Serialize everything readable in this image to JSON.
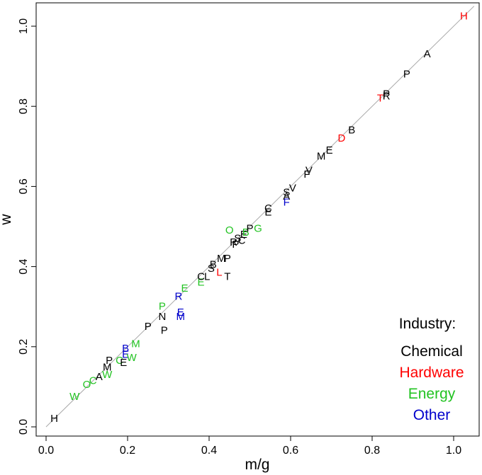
{
  "chart_data": {
    "type": "scatter",
    "title": "",
    "xlabel": "m/g",
    "ylabel": "w",
    "xlim": [
      -0.02,
      1.05
    ],
    "ylim": [
      -0.02,
      1.05
    ],
    "x_ticks": [
      "0.0",
      "0.2",
      "0.4",
      "0.6",
      "0.8",
      "1.0"
    ],
    "y_ticks": [
      "0.0",
      "0.2",
      "0.4",
      "0.6",
      "0.8",
      "1.0"
    ],
    "grid": false,
    "reference_line": {
      "from": [
        0.0,
        0.0
      ],
      "to": [
        1.05,
        1.05
      ],
      "color": "#a9a9a9"
    },
    "legend": {
      "title": "Industry:",
      "position": "bottom-right",
      "entries": [
        {
          "name": "Chemical",
          "color": "#000000"
        },
        {
          "name": "Hardware",
          "color": "#ff0000"
        },
        {
          "name": "Energy",
          "color": "#22c322"
        },
        {
          "name": "Other",
          "color": "#0000cc"
        }
      ]
    },
    "points": [
      {
        "label": "H",
        "industry": "Chemical",
        "x": 0.02,
        "y": 0.02
      },
      {
        "label": "W",
        "industry": "Energy",
        "x": 0.07,
        "y": 0.075
      },
      {
        "label": "O",
        "industry": "Energy",
        "x": 0.1,
        "y": 0.105
      },
      {
        "label": "C",
        "industry": "Energy",
        "x": 0.115,
        "y": 0.115
      },
      {
        "label": "A",
        "industry": "Chemical",
        "x": 0.13,
        "y": 0.125
      },
      {
        "label": "W",
        "industry": "Energy",
        "x": 0.15,
        "y": 0.13
      },
      {
        "label": "M",
        "industry": "Chemical",
        "x": 0.15,
        "y": 0.148
      },
      {
        "label": "P",
        "industry": "Chemical",
        "x": 0.155,
        "y": 0.165
      },
      {
        "label": "C",
        "industry": "Energy",
        "x": 0.18,
        "y": 0.165
      },
      {
        "label": "E",
        "industry": "Chemical",
        "x": 0.19,
        "y": 0.16
      },
      {
        "label": "E",
        "industry": "Other",
        "x": 0.195,
        "y": 0.18
      },
      {
        "label": "W",
        "industry": "Energy",
        "x": 0.21,
        "y": 0.172
      },
      {
        "label": "B",
        "industry": "Other",
        "x": 0.195,
        "y": 0.195
      },
      {
        "label": "M",
        "industry": "Energy",
        "x": 0.22,
        "y": 0.207
      },
      {
        "label": "P",
        "industry": "Chemical",
        "x": 0.25,
        "y": 0.25
      },
      {
        "label": "P",
        "industry": "Chemical",
        "x": 0.29,
        "y": 0.24
      },
      {
        "label": "N",
        "industry": "Chemical",
        "x": 0.285,
        "y": 0.275
      },
      {
        "label": "P",
        "industry": "Energy",
        "x": 0.285,
        "y": 0.3
      },
      {
        "label": "M",
        "industry": "Other",
        "x": 0.33,
        "y": 0.275
      },
      {
        "label": "E",
        "industry": "Other",
        "x": 0.33,
        "y": 0.285
      },
      {
        "label": "R",
        "industry": "Other",
        "x": 0.325,
        "y": 0.325
      },
      {
        "label": "E",
        "industry": "Energy",
        "x": 0.34,
        "y": 0.345
      },
      {
        "label": "E",
        "industry": "Energy",
        "x": 0.38,
        "y": 0.36
      },
      {
        "label": "C",
        "industry": "Chemical",
        "x": 0.38,
        "y": 0.375
      },
      {
        "label": "L",
        "industry": "Chemical",
        "x": 0.395,
        "y": 0.375
      },
      {
        "label": "T",
        "industry": "Chemical",
        "x": 0.445,
        "y": 0.375
      },
      {
        "label": "L",
        "industry": "Hardware",
        "x": 0.425,
        "y": 0.385
      },
      {
        "label": "S",
        "industry": "Chemical",
        "x": 0.405,
        "y": 0.395
      },
      {
        "label": "B",
        "industry": "Chemical",
        "x": 0.41,
        "y": 0.405
      },
      {
        "label": "M",
        "industry": "Chemical",
        "x": 0.43,
        "y": 0.42
      },
      {
        "label": "P",
        "industry": "Chemical",
        "x": 0.445,
        "y": 0.42
      },
      {
        "label": "P",
        "industry": "Chemical",
        "x": 0.465,
        "y": 0.455
      },
      {
        "label": "R",
        "industry": "Chemical",
        "x": 0.46,
        "y": 0.46
      },
      {
        "label": "C",
        "industry": "Chemical",
        "x": 0.48,
        "y": 0.465
      },
      {
        "label": "S",
        "industry": "Chemical",
        "x": 0.47,
        "y": 0.47
      },
      {
        "label": "E",
        "industry": "Chemical",
        "x": 0.485,
        "y": 0.48
      },
      {
        "label": "B",
        "industry": "Energy",
        "x": 0.49,
        "y": 0.485
      },
      {
        "label": "P",
        "industry": "Chemical",
        "x": 0.5,
        "y": 0.495
      },
      {
        "label": "O",
        "industry": "Energy",
        "x": 0.45,
        "y": 0.49
      },
      {
        "label": "G",
        "industry": "Energy",
        "x": 0.52,
        "y": 0.495
      },
      {
        "label": "C",
        "industry": "Chemical",
        "x": 0.545,
        "y": 0.545
      },
      {
        "label": "E",
        "industry": "Chemical",
        "x": 0.545,
        "y": 0.535
      },
      {
        "label": "F",
        "industry": "Other",
        "x": 0.59,
        "y": 0.56
      },
      {
        "label": "A",
        "industry": "Chemical",
        "x": 0.59,
        "y": 0.575
      },
      {
        "label": "S",
        "industry": "Chemical",
        "x": 0.59,
        "y": 0.585
      },
      {
        "label": "V",
        "industry": "Chemical",
        "x": 0.605,
        "y": 0.595
      },
      {
        "label": "F",
        "industry": "Chemical",
        "x": 0.64,
        "y": 0.63
      },
      {
        "label": "V",
        "industry": "Chemical",
        "x": 0.645,
        "y": 0.64
      },
      {
        "label": "M",
        "industry": "Chemical",
        "x": 0.675,
        "y": 0.675
      },
      {
        "label": "E",
        "industry": "Chemical",
        "x": 0.695,
        "y": 0.69
      },
      {
        "label": "D",
        "industry": "Hardware",
        "x": 0.725,
        "y": 0.72
      },
      {
        "label": "B",
        "industry": "Chemical",
        "x": 0.75,
        "y": 0.74
      },
      {
        "label": "T",
        "industry": "Hardware",
        "x": 0.82,
        "y": 0.82
      },
      {
        "label": "P",
        "industry": "Chemical",
        "x": 0.835,
        "y": 0.83
      },
      {
        "label": "R",
        "industry": "Chemical",
        "x": 0.835,
        "y": 0.825
      },
      {
        "label": "P",
        "industry": "Chemical",
        "x": 0.885,
        "y": 0.88
      },
      {
        "label": "A",
        "industry": "Chemical",
        "x": 0.935,
        "y": 0.93
      },
      {
        "label": "H",
        "industry": "Hardware",
        "x": 1.025,
        "y": 1.025
      }
    ]
  }
}
